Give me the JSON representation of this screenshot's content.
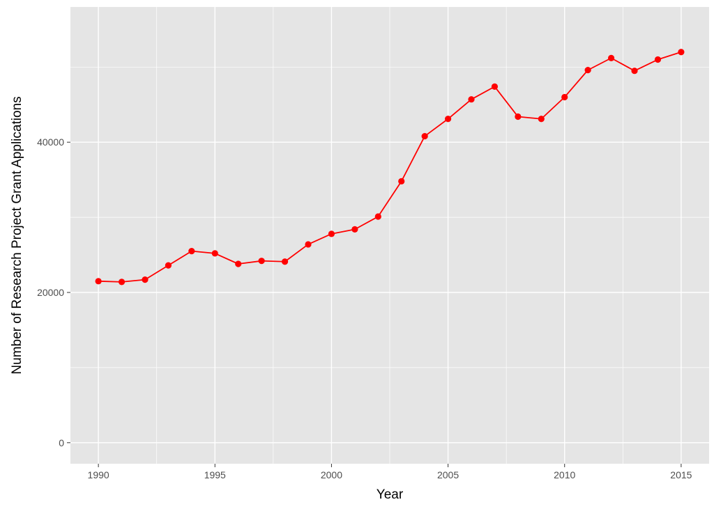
{
  "chart_data": {
    "type": "line",
    "title": "",
    "xlabel": "Year",
    "ylabel": "Number of Research Project Grant Applications",
    "xlim": [
      1988.8,
      2016.2
    ],
    "ylim": [
      -2800,
      58000
    ],
    "x_ticks": [
      1990,
      1995,
      2000,
      2005,
      2010,
      2015
    ],
    "x_tick_labels": [
      "1990",
      "1995",
      "2000",
      "2005",
      "2010",
      "2015"
    ],
    "y_ticks": [
      0,
      20000,
      40000
    ],
    "y_tick_labels": [
      "0",
      "20000",
      "40000"
    ],
    "grid": true,
    "legend": "none",
    "series": [
      {
        "color": "#ff0000",
        "x": [
          1990,
          1991,
          1992,
          1993,
          1994,
          1995,
          1996,
          1997,
          1998,
          1999,
          2000,
          2001,
          2002,
          2003,
          2004,
          2005,
          2006,
          2007,
          2008,
          2009,
          2010,
          2011,
          2012,
          2013,
          2014,
          2015
        ],
        "y": [
          21500,
          21400,
          21700,
          23600,
          25500,
          25200,
          23800,
          24200,
          24100,
          26400,
          27800,
          28400,
          30100,
          34800,
          40800,
          43100,
          45700,
          47400,
          43400,
          43100,
          46000,
          49600,
          51200,
          49500,
          51000,
          52000
        ]
      }
    ]
  },
  "colors": {
    "panel_background": "#e5e5e5",
    "grid_major": "#ffffff",
    "line": "#ff0000",
    "point": "#ff0000"
  }
}
